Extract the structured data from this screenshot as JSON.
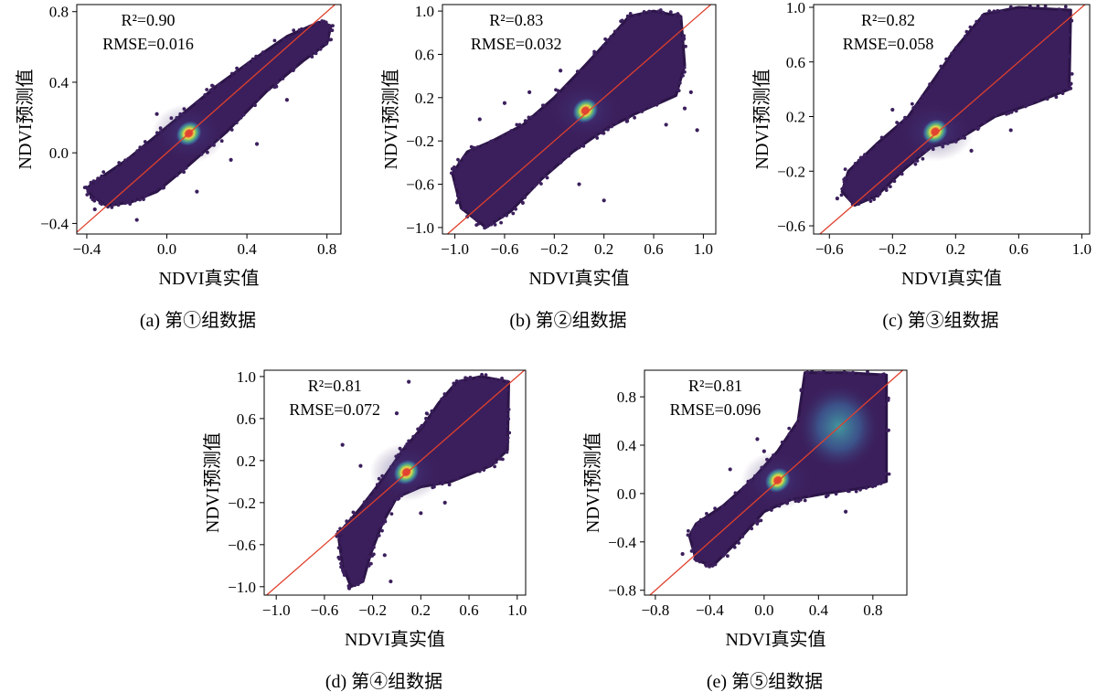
{
  "figure": {
    "axis_label_fontsize_note": "",
    "colors": {
      "cloud": "#3b1f5c",
      "cloud_edge": "#2c1548",
      "glow_blue": "#3e8fc0",
      "glow_cyan": "#45c0b2",
      "glow_green": "#7fd36a",
      "glow_yellow": "#f2e64a",
      "core": "#e8452f",
      "line": "#e0402c"
    }
  },
  "chart_data": [
    {
      "id": "a",
      "type": "scatter",
      "title": "(a) 第①组数据",
      "xlabel": "NDVI真实值",
      "ylabel": "NDVI预测值",
      "xlim": [
        -0.45,
        0.87
      ],
      "ylim": [
        -0.46,
        0.84
      ],
      "xticks": [
        -0.4,
        0.0,
        0.4,
        0.8
      ],
      "xtick_labels": [
        "−0.4",
        "0.0",
        "0.4",
        "0.8"
      ],
      "yticks": [
        -0.4,
        0.0,
        0.4,
        0.8
      ],
      "ytick_labels": [
        "−0.4",
        "0.0",
        "0.4",
        "0.8"
      ],
      "stats": {
        "r2": "R²=0.90",
        "rmse": "RMSE=0.016",
        "r2_value": 0.9,
        "rmse_value": 0.016
      },
      "density_center": [
        0.11,
        0.11
      ],
      "cloud": [
        [
          -0.38,
          -0.24
        ],
        [
          -0.3,
          -0.3
        ],
        [
          -0.18,
          -0.28
        ],
        [
          -0.05,
          -0.22
        ],
        [
          0.1,
          -0.08
        ],
        [
          0.3,
          0.12
        ],
        [
          0.5,
          0.35
        ],
        [
          0.68,
          0.52
        ],
        [
          0.8,
          0.62
        ],
        [
          0.82,
          0.72
        ],
        [
          0.76,
          0.74
        ],
        [
          0.6,
          0.66
        ],
        [
          0.42,
          0.52
        ],
        [
          0.25,
          0.38
        ],
        [
          0.1,
          0.24
        ],
        [
          -0.05,
          0.1
        ],
        [
          -0.2,
          -0.04
        ],
        [
          -0.33,
          -0.14
        ],
        [
          -0.4,
          -0.2
        ]
      ],
      "outliers": [
        [
          -0.15,
          -0.38
        ],
        [
          0.15,
          -0.22
        ],
        [
          0.32,
          -0.04
        ],
        [
          0.6,
          0.3
        ],
        [
          -0.36,
          -0.32
        ],
        [
          0.45,
          0.05
        ],
        [
          -0.05,
          0.22
        ]
      ]
    },
    {
      "id": "b",
      "type": "scatter",
      "title": "(b) 第②组数据",
      "xlabel": "NDVI真实值",
      "ylabel": "NDVI预测值",
      "xlim": [
        -1.1,
        1.1
      ],
      "ylim": [
        -1.06,
        1.06
      ],
      "xticks": [
        -1.0,
        -0.6,
        -0.2,
        0.2,
        0.6,
        1.0
      ],
      "xtick_labels": [
        "−1.0",
        "−0.6",
        "−0.2",
        "0.2",
        "0.6",
        "1.0"
      ],
      "yticks": [
        -1.0,
        -0.6,
        -0.2,
        0.2,
        0.6,
        1.0
      ],
      "ytick_labels": [
        "−1.0",
        "−0.6",
        "−0.2",
        "0.2",
        "0.6",
        "1.0"
      ],
      "stats": {
        "r2": "R²=0.83",
        "rmse": "RMSE=0.032",
        "r2_value": 0.83,
        "rmse_value": 0.032
      },
      "density_center": [
        0.05,
        0.08
      ],
      "cloud": [
        [
          -1.02,
          -0.5
        ],
        [
          -0.95,
          -0.82
        ],
        [
          -0.75,
          -1.0
        ],
        [
          -0.55,
          -0.85
        ],
        [
          -0.3,
          -0.55
        ],
        [
          -0.05,
          -0.3
        ],
        [
          0.2,
          -0.1
        ],
        [
          0.45,
          0.05
        ],
        [
          0.78,
          0.22
        ],
        [
          0.85,
          0.5
        ],
        [
          0.82,
          0.95
        ],
        [
          0.6,
          1.0
        ],
        [
          0.4,
          0.95
        ],
        [
          0.25,
          0.75
        ],
        [
          0.05,
          0.5
        ],
        [
          -0.2,
          0.2
        ],
        [
          -0.45,
          -0.05
        ],
        [
          -0.7,
          -0.2
        ],
        [
          -0.9,
          -0.3
        ]
      ],
      "outliers": [
        [
          -0.6,
          0.15
        ],
        [
          -0.4,
          0.25
        ],
        [
          -0.15,
          0.45
        ],
        [
          0.85,
          0.1
        ],
        [
          0.95,
          -0.1
        ],
        [
          0.7,
          -0.05
        ],
        [
          -0.9,
          -0.9
        ],
        [
          0.2,
          -0.75
        ],
        [
          0.0,
          -0.6
        ],
        [
          -0.8,
          0.0
        ],
        [
          0.9,
          0.25
        ]
      ]
    },
    {
      "id": "c",
      "type": "scatter",
      "title": "(c) 第③组数据",
      "xlabel": "NDVI真实值",
      "ylabel": "NDVI预测值",
      "xlim": [
        -0.7,
        1.05
      ],
      "ylim": [
        -0.66,
        1.02
      ],
      "xticks": [
        -0.6,
        -0.2,
        0.2,
        0.6,
        1.0
      ],
      "xtick_labels": [
        "−0.6",
        "−0.2",
        "0.2",
        "0.6",
        "1.0"
      ],
      "yticks": [
        -0.6,
        -0.2,
        0.2,
        0.6,
        1.0
      ],
      "ytick_labels": [
        "−0.6",
        "−0.2",
        "0.2",
        "0.6",
        "1.0"
      ],
      "stats": {
        "r2": "R²=0.82",
        "rmse": "RMSE=0.058",
        "r2_value": 0.82,
        "rmse_value": 0.058
      },
      "density_center": [
        0.07,
        0.09
      ],
      "cloud": [
        [
          -0.52,
          -0.35
        ],
        [
          -0.44,
          -0.45
        ],
        [
          -0.3,
          -0.38
        ],
        [
          -0.12,
          -0.18
        ],
        [
          0.05,
          -0.02
        ],
        [
          0.2,
          0.02
        ],
        [
          0.45,
          0.2
        ],
        [
          0.7,
          0.3
        ],
        [
          0.92,
          0.4
        ],
        [
          0.93,
          0.98
        ],
        [
          0.6,
          1.0
        ],
        [
          0.38,
          0.95
        ],
        [
          0.2,
          0.7
        ],
        [
          0.05,
          0.45
        ],
        [
          -0.1,
          0.2
        ],
        [
          -0.3,
          0.0
        ],
        [
          -0.48,
          -0.2
        ]
      ],
      "outliers": [
        [
          -0.38,
          -0.1
        ],
        [
          0.3,
          -0.05
        ],
        [
          0.55,
          0.1
        ],
        [
          -0.2,
          0.25
        ],
        [
          -0.55,
          -0.4
        ]
      ]
    },
    {
      "id": "d",
      "type": "scatter",
      "title": "(d) 第④组数据",
      "xlabel": "NDVI真实值",
      "ylabel": "NDVI预测值",
      "xlim": [
        -1.1,
        1.07
      ],
      "ylim": [
        -1.08,
        1.06
      ],
      "xticks": [
        -1.0,
        -0.6,
        -0.2,
        0.2,
        0.6,
        1.0
      ],
      "xtick_labels": [
        "−1.0",
        "−0.6",
        "−0.2",
        "0.2",
        "0.6",
        "1.0"
      ],
      "yticks": [
        -1.0,
        -0.6,
        -0.2,
        0.2,
        0.6,
        1.0
      ],
      "ytick_labels": [
        "−1.0",
        "−0.6",
        "−0.2",
        "0.2",
        "0.6",
        "1.0"
      ],
      "stats": {
        "r2": "R²=0.81",
        "rmse": "RMSE=0.072",
        "r2_value": 0.81,
        "rmse_value": 0.072
      },
      "density_center": [
        0.08,
        0.09
      ],
      "cloud": [
        [
          -0.48,
          -0.55
        ],
        [
          -0.45,
          -0.8
        ],
        [
          -0.38,
          -1.0
        ],
        [
          -0.28,
          -0.95
        ],
        [
          -0.22,
          -0.7
        ],
        [
          -0.12,
          -0.4
        ],
        [
          0.0,
          -0.15
        ],
        [
          0.2,
          -0.05
        ],
        [
          0.45,
          0.0
        ],
        [
          0.78,
          0.15
        ],
        [
          0.92,
          0.3
        ],
        [
          0.93,
          0.95
        ],
        [
          0.7,
          1.0
        ],
        [
          0.5,
          0.95
        ],
        [
          0.35,
          0.75
        ],
        [
          0.2,
          0.5
        ],
        [
          0.05,
          0.3
        ],
        [
          -0.1,
          0.05
        ],
        [
          -0.3,
          -0.25
        ],
        [
          -0.45,
          -0.45
        ]
      ],
      "outliers": [
        [
          -0.45,
          0.35
        ],
        [
          -0.3,
          0.15
        ],
        [
          0.1,
          0.95
        ],
        [
          0.0,
          0.65
        ],
        [
          -0.1,
          -0.7
        ],
        [
          0.2,
          -0.3
        ],
        [
          0.4,
          -0.2
        ],
        [
          -0.05,
          -0.95
        ]
      ]
    },
    {
      "id": "e",
      "type": "scatter",
      "title": "(e) 第⑤组数据",
      "xlabel": "NDVI真实值",
      "ylabel": "NDVI预测值",
      "xlim": [
        -0.88,
        1.05
      ],
      "ylim": [
        -0.84,
        1.02
      ],
      "xticks": [
        -0.8,
        -0.4,
        0.0,
        0.4,
        0.8
      ],
      "xtick_labels": [
        "−0.8",
        "−0.4",
        "0.0",
        "0.4",
        "0.8"
      ],
      "yticks": [
        -0.8,
        -0.4,
        0.0,
        0.4,
        0.8
      ],
      "ytick_labels": [
        "−0.8",
        "−0.4",
        "0.0",
        "0.4",
        "0.8"
      ],
      "stats": {
        "r2": "R²=0.81",
        "rmse": "RMSE=0.096",
        "r2_value": 0.81,
        "rmse_value": 0.096
      },
      "density_center": [
        0.1,
        0.11
      ],
      "cloud": [
        [
          -0.55,
          -0.35
        ],
        [
          -0.5,
          -0.55
        ],
        [
          -0.38,
          -0.6
        ],
        [
          -0.2,
          -0.4
        ],
        [
          0.0,
          -0.15
        ],
        [
          0.2,
          -0.05
        ],
        [
          0.45,
          0.0
        ],
        [
          0.75,
          0.05
        ],
        [
          0.9,
          0.1
        ],
        [
          0.9,
          0.98
        ],
        [
          0.6,
          1.0
        ],
        [
          0.3,
          1.0
        ],
        [
          0.25,
          0.6
        ],
        [
          0.1,
          0.35
        ],
        [
          -0.1,
          0.1
        ],
        [
          -0.3,
          -0.1
        ],
        [
          -0.5,
          -0.25
        ]
      ],
      "outliers": [
        [
          -0.05,
          0.45
        ],
        [
          0.0,
          0.35
        ],
        [
          -0.25,
          0.2
        ],
        [
          0.6,
          -0.15
        ],
        [
          -0.6,
          -0.5
        ]
      ],
      "secondary_glow": [
        0.55,
        0.55
      ]
    }
  ]
}
